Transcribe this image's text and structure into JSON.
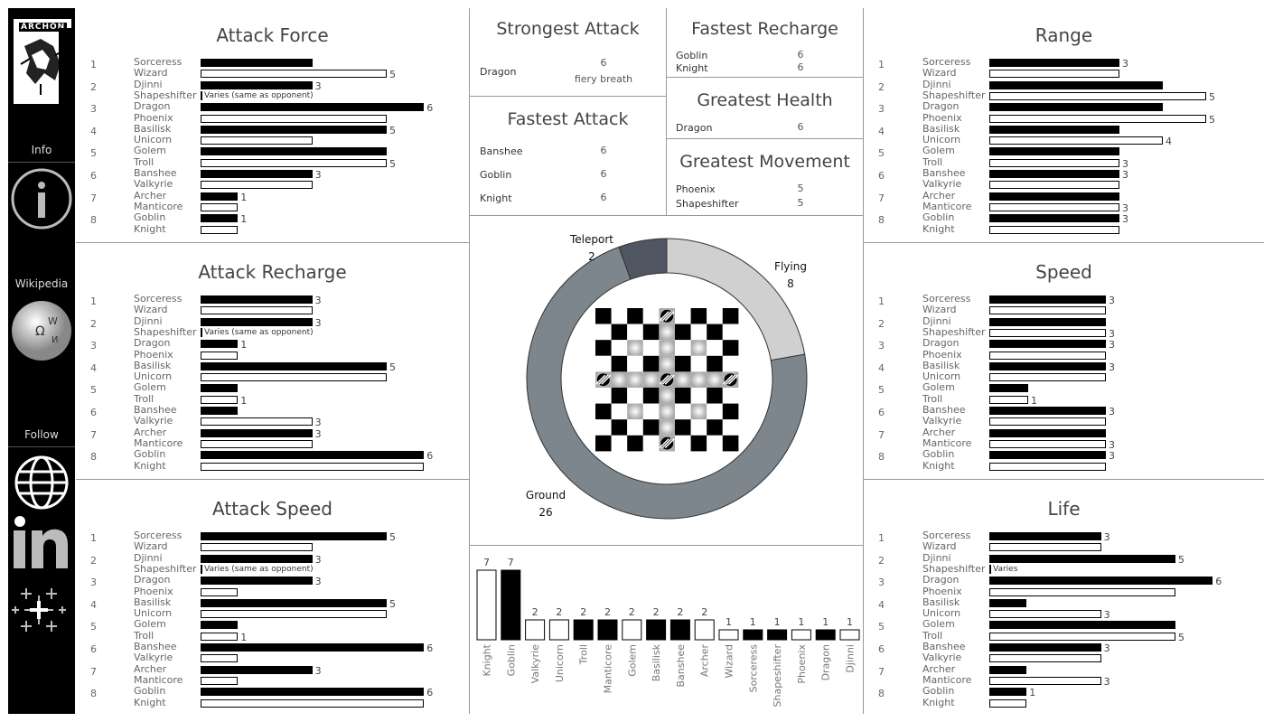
{
  "sidebar": {
    "logo_text": "ARCHON",
    "info_label": "Info",
    "wikipedia_label": "Wikipedia",
    "follow_label": "Follow"
  },
  "colors": {
    "dark_bar": "#000000",
    "light_bar": "#ffffff",
    "ground": "#7c868c",
    "flying": "#d0d0d0",
    "teleport": "#4f5561"
  },
  "chart_data": [
    {
      "type": "bar",
      "title": "Attack Force",
      "rows": [
        {
          "rank": "1",
          "names": [
            "Sorceress",
            "Wizard"
          ],
          "values": [
            3,
            5
          ],
          "labels": [
            "",
            "5"
          ]
        },
        {
          "rank": "2",
          "names": [
            "Djinni",
            "Shapeshifter"
          ],
          "values": [
            3,
            null
          ],
          "labels": [
            "3",
            ""
          ],
          "varies": "Varies (same as opponent)"
        },
        {
          "rank": "3",
          "names": [
            "Dragon",
            "Phoenix"
          ],
          "values": [
            6,
            5
          ],
          "labels": [
            "6",
            ""
          ]
        },
        {
          "rank": "4",
          "names": [
            "Basilisk",
            "Unicorn"
          ],
          "values": [
            5,
            3
          ],
          "labels": [
            "5",
            ""
          ]
        },
        {
          "rank": "5",
          "names": [
            "Golem",
            "Troll"
          ],
          "values": [
            5,
            5
          ],
          "labels": [
            "",
            "5"
          ]
        },
        {
          "rank": "6",
          "names": [
            "Banshee",
            "Valkyrie"
          ],
          "values": [
            3,
            3
          ],
          "labels": [
            "3",
            ""
          ]
        },
        {
          "rank": "7",
          "names": [
            "Archer",
            "Manticore"
          ],
          "values": [
            1,
            1
          ],
          "labels": [
            "1",
            ""
          ]
        },
        {
          "rank": "8",
          "names": [
            "Goblin",
            "Knight"
          ],
          "values": [
            1,
            1
          ],
          "labels": [
            "1",
            ""
          ]
        }
      ]
    },
    {
      "type": "bar",
      "title": "Attack Recharge",
      "rows": [
        {
          "rank": "1",
          "names": [
            "Sorceress",
            "Wizard"
          ],
          "values": [
            3,
            3
          ],
          "labels": [
            "3",
            ""
          ]
        },
        {
          "rank": "2",
          "names": [
            "Djinni",
            "Shapeshifter"
          ],
          "values": [
            3,
            null
          ],
          "labels": [
            "3",
            ""
          ],
          "varies": "Varies (same as opponent)"
        },
        {
          "rank": "3",
          "names": [
            "Dragon",
            "Phoenix"
          ],
          "values": [
            1,
            1
          ],
          "labels": [
            "1",
            ""
          ]
        },
        {
          "rank": "4",
          "names": [
            "Basilisk",
            "Unicorn"
          ],
          "values": [
            5,
            5
          ],
          "labels": [
            "5",
            ""
          ]
        },
        {
          "rank": "5",
          "names": [
            "Golem",
            "Troll"
          ],
          "values": [
            1,
            1
          ],
          "labels": [
            "",
            "1"
          ]
        },
        {
          "rank": "6",
          "names": [
            "Banshee",
            "Valkyrie"
          ],
          "values": [
            1,
            3
          ],
          "labels": [
            "",
            "3"
          ]
        },
        {
          "rank": "7",
          "names": [
            "Archer",
            "Manticore"
          ],
          "values": [
            3,
            3
          ],
          "labels": [
            "3",
            ""
          ]
        },
        {
          "rank": "8",
          "names": [
            "Goblin",
            "Knight"
          ],
          "values": [
            6,
            6
          ],
          "labels": [
            "6",
            ""
          ]
        }
      ]
    },
    {
      "type": "bar",
      "title": "Attack Speed",
      "rows": [
        {
          "rank": "1",
          "names": [
            "Sorceress",
            "Wizard"
          ],
          "values": [
            5,
            3
          ],
          "labels": [
            "5",
            ""
          ]
        },
        {
          "rank": "2",
          "names": [
            "Djinni",
            "Shapeshifter"
          ],
          "values": [
            3,
            null
          ],
          "labels": [
            "3",
            ""
          ],
          "varies": "Varies (same as opponent)"
        },
        {
          "rank": "3",
          "names": [
            "Dragon",
            "Phoenix"
          ],
          "values": [
            3,
            1
          ],
          "labels": [
            "3",
            ""
          ]
        },
        {
          "rank": "4",
          "names": [
            "Basilisk",
            "Unicorn"
          ],
          "values": [
            5,
            5
          ],
          "labels": [
            "5",
            ""
          ]
        },
        {
          "rank": "5",
          "names": [
            "Golem",
            "Troll"
          ],
          "values": [
            1,
            1
          ],
          "labels": [
            "",
            "1"
          ]
        },
        {
          "rank": "6",
          "names": [
            "Banshee",
            "Valkyrie"
          ],
          "values": [
            6,
            1
          ],
          "labels": [
            "6",
            ""
          ]
        },
        {
          "rank": "7",
          "names": [
            "Archer",
            "Manticore"
          ],
          "values": [
            3,
            1
          ],
          "labels": [
            "3",
            ""
          ]
        },
        {
          "rank": "8",
          "names": [
            "Goblin",
            "Knight"
          ],
          "values": [
            6,
            6
          ],
          "labels": [
            "6",
            ""
          ]
        }
      ]
    },
    {
      "type": "bar",
      "title": "Range",
      "rows": [
        {
          "rank": "1",
          "names": [
            "Sorceress",
            "Wizard"
          ],
          "values": [
            3,
            3
          ],
          "labels": [
            "3",
            ""
          ]
        },
        {
          "rank": "2",
          "names": [
            "Djinni",
            "Shapeshifter"
          ],
          "values": [
            4,
            5
          ],
          "labels": [
            "",
            "5"
          ]
        },
        {
          "rank": "3",
          "names": [
            "Dragon",
            "Phoenix"
          ],
          "values": [
            4,
            5
          ],
          "labels": [
            "",
            "5"
          ]
        },
        {
          "rank": "4",
          "names": [
            "Basilisk",
            "Unicorn"
          ],
          "values": [
            3,
            4
          ],
          "labels": [
            "",
            "4"
          ]
        },
        {
          "rank": "5",
          "names": [
            "Golem",
            "Troll"
          ],
          "values": [
            3,
            3
          ],
          "labels": [
            "",
            "3"
          ]
        },
        {
          "rank": "6",
          "names": [
            "Banshee",
            "Valkyrie"
          ],
          "values": [
            3,
            3
          ],
          "labels": [
            "3",
            ""
          ]
        },
        {
          "rank": "7",
          "names": [
            "Archer",
            "Manticore"
          ],
          "values": [
            3,
            3
          ],
          "labels": [
            "",
            "3"
          ]
        },
        {
          "rank": "8",
          "names": [
            "Goblin",
            "Knight"
          ],
          "values": [
            3,
            3
          ],
          "labels": [
            "3",
            ""
          ]
        }
      ]
    },
    {
      "type": "bar",
      "title": "Speed",
      "rows": [
        {
          "rank": "1",
          "names": [
            "Sorceress",
            "Wizard"
          ],
          "values": [
            3,
            3
          ],
          "labels": [
            "3",
            ""
          ]
        },
        {
          "rank": "2",
          "names": [
            "Djinni",
            "Shapeshifter"
          ],
          "values": [
            3,
            3
          ],
          "labels": [
            "",
            "3"
          ]
        },
        {
          "rank": "3",
          "names": [
            "Dragon",
            "Phoenix"
          ],
          "values": [
            3,
            3
          ],
          "labels": [
            "3",
            ""
          ]
        },
        {
          "rank": "4",
          "names": [
            "Basilisk",
            "Unicorn"
          ],
          "values": [
            3,
            3
          ],
          "labels": [
            "3",
            ""
          ]
        },
        {
          "rank": "5",
          "names": [
            "Golem",
            "Troll"
          ],
          "values": [
            1,
            1
          ],
          "labels": [
            "",
            "1"
          ]
        },
        {
          "rank": "6",
          "names": [
            "Banshee",
            "Valkyrie"
          ],
          "values": [
            3,
            3
          ],
          "labels": [
            "3",
            ""
          ]
        },
        {
          "rank": "7",
          "names": [
            "Archer",
            "Manticore"
          ],
          "values": [
            3,
            3
          ],
          "labels": [
            "",
            "3"
          ]
        },
        {
          "rank": "8",
          "names": [
            "Goblin",
            "Knight"
          ],
          "values": [
            3,
            3
          ],
          "labels": [
            "3",
            ""
          ]
        }
      ]
    },
    {
      "type": "bar",
      "title": "Life",
      "rows": [
        {
          "rank": "1",
          "names": [
            "Sorceress",
            "Wizard"
          ],
          "values": [
            3,
            3
          ],
          "labels": [
            "3",
            ""
          ]
        },
        {
          "rank": "2",
          "names": [
            "Djinni",
            "Shapeshifter"
          ],
          "values": [
            5,
            null
          ],
          "labels": [
            "5",
            ""
          ],
          "varies": "Varies"
        },
        {
          "rank": "3",
          "names": [
            "Dragon",
            "Phoenix"
          ],
          "values": [
            6,
            5
          ],
          "labels": [
            "6",
            ""
          ]
        },
        {
          "rank": "4",
          "names": [
            "Basilisk",
            "Unicorn"
          ],
          "values": [
            1,
            3
          ],
          "labels": [
            "",
            "3"
          ]
        },
        {
          "rank": "5",
          "names": [
            "Golem",
            "Troll"
          ],
          "values": [
            5,
            5
          ],
          "labels": [
            "",
            "5"
          ]
        },
        {
          "rank": "6",
          "names": [
            "Banshee",
            "Valkyrie"
          ],
          "values": [
            3,
            3
          ],
          "labels": [
            "3",
            ""
          ]
        },
        {
          "rank": "7",
          "names": [
            "Archer",
            "Manticore"
          ],
          "values": [
            1,
            3
          ],
          "labels": [
            "",
            "3"
          ]
        },
        {
          "rank": "8",
          "names": [
            "Goblin",
            "Knight"
          ],
          "values": [
            1,
            1
          ],
          "labels": [
            "1",
            ""
          ]
        }
      ]
    },
    {
      "type": "pie",
      "title": "",
      "slices": [
        {
          "label": "Flying",
          "value": 8
        },
        {
          "label": "Ground",
          "value": 26
        },
        {
          "label": "Teleport",
          "value": 2
        }
      ]
    },
    {
      "type": "bar",
      "title": "",
      "categories": [
        "Knight",
        "Goblin",
        "Valkyrie",
        "Unicorn",
        "Troll",
        "Manticore",
        "Golem",
        "Basilisk",
        "Banshee",
        "Archer",
        "Wizard",
        "Sorceress",
        "Shapeshifter",
        "Phoenix",
        "Dragon",
        "Djinni"
      ],
      "values": [
        7,
        7,
        2,
        2,
        2,
        2,
        2,
        2,
        2,
        2,
        1,
        1,
        1,
        1,
        1,
        1
      ],
      "dark": [
        false,
        true,
        false,
        false,
        true,
        true,
        false,
        true,
        true,
        false,
        false,
        true,
        true,
        false,
        true,
        false
      ]
    }
  ],
  "stats": {
    "strongest_attack": {
      "title": "Strongest Attack",
      "name": "Dragon",
      "value": "6",
      "note": "fiery breath"
    },
    "fastest_recharge": {
      "title": "Fastest Recharge",
      "rows": [
        {
          "name": "Goblin",
          "value": "6"
        },
        {
          "name": "Knight",
          "value": "6"
        }
      ]
    },
    "fastest_attack": {
      "title": "Fastest Attack",
      "rows": [
        {
          "name": "Banshee",
          "value": "6"
        },
        {
          "name": "Goblin",
          "value": "6"
        },
        {
          "name": "Knight",
          "value": "6"
        }
      ]
    },
    "greatest_health": {
      "title": "Greatest Health",
      "rows": [
        {
          "name": "Dragon",
          "value": "6"
        }
      ]
    },
    "greatest_movement": {
      "title": "Greatest Movement",
      "rows": [
        {
          "name": "Phoenix",
          "value": "5"
        },
        {
          "name": "Shapeshifter",
          "value": "5"
        }
      ]
    }
  }
}
